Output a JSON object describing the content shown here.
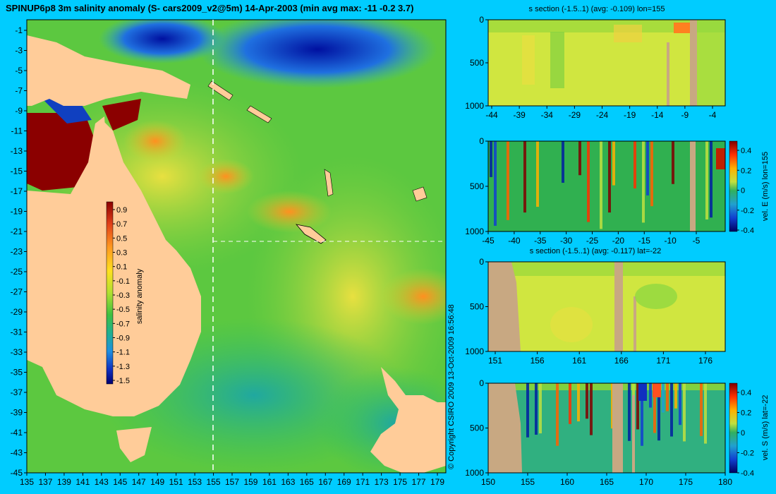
{
  "title": "SPINUP6p8 3m salinity anomaly (S- cars2009_v2@5m) 14-Apr-2003 (min avg max: -11 -0.2 3.7)",
  "copyright": "© Copyright CSIRO 2009   13-Oct-2009 16:56:48",
  "colors": {
    "background": "#00ccff",
    "land": "#ffcc99",
    "section_land": "#c8a882"
  },
  "chart_data": [
    {
      "type": "heatmap",
      "id": "map",
      "title": "",
      "xlabel": "",
      "ylabel": "",
      "xlim": [
        135,
        180
      ],
      "ylim": [
        -45,
        0
      ],
      "x_ticks": [
        "135",
        "137",
        "139",
        "141",
        "143",
        "145",
        "147",
        "149",
        "151",
        "153",
        "155",
        "157",
        "159",
        "161",
        "163",
        "165",
        "167",
        "169",
        "171",
        "173",
        "175",
        "177",
        "179"
      ],
      "y_ticks": [
        "-1",
        "-3",
        "-5",
        "-7",
        "-9",
        "-11",
        "-13",
        "-15",
        "-17",
        "-19",
        "-21",
        "-23",
        "-25",
        "-27",
        "-29",
        "-31",
        "-33",
        "-35",
        "-37",
        "-39",
        "-41",
        "-43",
        "-45"
      ],
      "crosshair": {
        "lon": 155,
        "lat": -22
      },
      "colorbar": {
        "label": "salinity anomaly",
        "ticks": [
          "0.9",
          "0.7",
          "0.5",
          "0.3",
          "0.1",
          "-0.1",
          "-0.3",
          "-0.5",
          "-0.7",
          "-0.9",
          "-1.1",
          "-1.3",
          "-1.5"
        ],
        "range": [
          -1.5,
          1.0
        ]
      }
    },
    {
      "type": "heatmap",
      "id": "section_s_lon",
      "title": "s section (-1.5..1) (avg: -0.109) lon=155",
      "x_ticks": [
        "-44",
        "-39",
        "-34",
        "-29",
        "-24",
        "-19",
        "-14",
        "-9",
        "-4"
      ],
      "y_ticks": [
        "0",
        "500",
        "1000"
      ]
    },
    {
      "type": "heatmap",
      "id": "section_vel_e",
      "title": "",
      "x_ticks": [
        "-45",
        "-40",
        "-35",
        "-30",
        "-25",
        "-20",
        "-15",
        "-10",
        "-5"
      ],
      "y_ticks": [
        "0",
        "500",
        "1000"
      ],
      "colorbar": {
        "label": "vel. E (m/s) lon=155",
        "ticks": [
          "0.4",
          "0.2",
          "0",
          "-0.2",
          "-0.4"
        ]
      }
    },
    {
      "type": "heatmap",
      "id": "section_s_lat",
      "title": "s section (-1.5..1) (avg: -0.117) lat=-22",
      "x_ticks": [
        "151",
        "156",
        "161",
        "166",
        "171",
        "176"
      ],
      "y_ticks": [
        "0",
        "500",
        "1000"
      ]
    },
    {
      "type": "heatmap",
      "id": "section_vel_s",
      "title": "",
      "x_ticks": [
        "150",
        "155",
        "160",
        "165",
        "170",
        "175",
        "180"
      ],
      "y_ticks": [
        "0",
        "500",
        "1000"
      ],
      "colorbar": {
        "label": "vel. S (m/s) lat=-22",
        "ticks": [
          "0.4",
          "0.2",
          "0",
          "-0.2",
          "-0.4"
        ]
      }
    }
  ]
}
